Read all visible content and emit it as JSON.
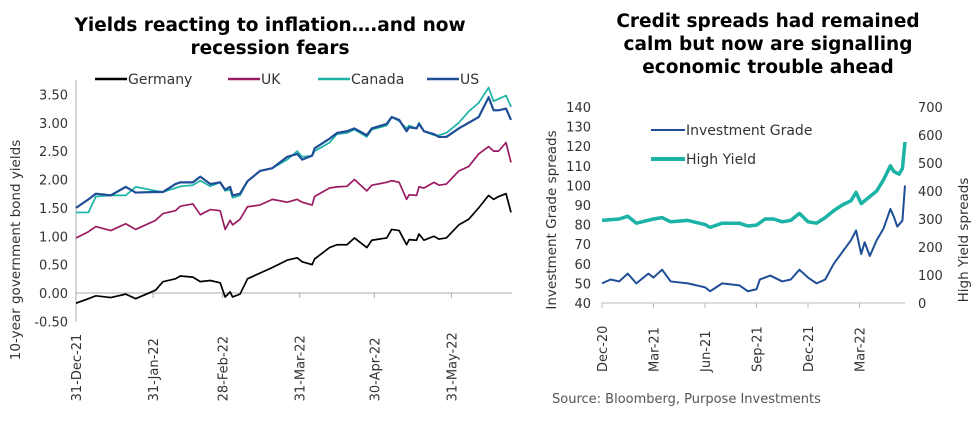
{
  "chart_data": [
    {
      "type": "line",
      "title": "Yields reacting to inflation….and now recession fears",
      "xlabel": "",
      "ylabel": "10-year government bond yields",
      "x_unit": "days since 31-Dec-21",
      "xlim": [
        0,
        175
      ],
      "ylim": [
        -0.5,
        3.75
      ],
      "yticks": [
        "-0.50",
        "0.00",
        "0.50",
        "1.00",
        "1.50",
        "2.00",
        "2.50",
        "3.00",
        "3.50"
      ],
      "ytick_values": [
        -0.5,
        0,
        0.5,
        1,
        1.5,
        2,
        2.5,
        3,
        3.5
      ],
      "xticks": [
        {
          "label": "31-Dec-21",
          "x": 0
        },
        {
          "label": "31-Jan-22",
          "x": 31
        },
        {
          "label": "28-Feb-22",
          "x": 59
        },
        {
          "label": "31-Mar-22",
          "x": 90
        },
        {
          "label": "30-Apr-22",
          "x": 120
        },
        {
          "label": "31-May-22",
          "x": 151
        }
      ],
      "legend_position": "top",
      "x": [
        0,
        5,
        8,
        14,
        20,
        24,
        32,
        35,
        40,
        42,
        47,
        50,
        54,
        58,
        60,
        62,
        63,
        66,
        69,
        74,
        79,
        85,
        89,
        91,
        95,
        96,
        102,
        105,
        109,
        112,
        117,
        119,
        125,
        127,
        130,
        133,
        134,
        137,
        138,
        140,
        144,
        146,
        149,
        154,
        158,
        162,
        166,
        168,
        170,
        173,
        175
      ],
      "series": [
        {
          "name": "Germany",
          "color": "#000000",
          "values": [
            -0.18,
            -0.1,
            -0.05,
            -0.08,
            -0.02,
            -0.1,
            0.05,
            0.2,
            0.25,
            0.3,
            0.28,
            0.2,
            0.22,
            0.18,
            -0.07,
            0.02,
            -0.07,
            -0.02,
            0.25,
            0.35,
            0.45,
            0.58,
            0.62,
            0.55,
            0.5,
            0.6,
            0.8,
            0.85,
            0.85,
            0.97,
            0.8,
            0.93,
            0.97,
            1.12,
            1.1,
            0.85,
            0.94,
            0.93,
            1.04,
            0.93,
            1.0,
            0.95,
            0.97,
            1.2,
            1.3,
            1.5,
            1.72,
            1.65,
            1.7,
            1.75,
            1.42
          ]
        },
        {
          "name": "UK",
          "color": "#9b1b62",
          "values": [
            0.97,
            1.08,
            1.17,
            1.1,
            1.22,
            1.12,
            1.28,
            1.4,
            1.45,
            1.53,
            1.57,
            1.38,
            1.47,
            1.45,
            1.12,
            1.28,
            1.2,
            1.3,
            1.52,
            1.55,
            1.65,
            1.6,
            1.65,
            1.6,
            1.55,
            1.7,
            1.85,
            1.87,
            1.88,
            2.0,
            1.8,
            1.9,
            1.95,
            1.98,
            1.95,
            1.65,
            1.73,
            1.72,
            1.87,
            1.85,
            1.95,
            1.9,
            1.92,
            2.15,
            2.23,
            2.45,
            2.58,
            2.5,
            2.5,
            2.65,
            2.3
          ]
        },
        {
          "name": "Canada",
          "color": "#1ab3a6",
          "values": [
            1.42,
            1.42,
            1.7,
            1.72,
            1.72,
            1.87,
            1.8,
            1.78,
            1.85,
            1.88,
            1.9,
            1.98,
            1.88,
            1.95,
            1.8,
            1.82,
            1.68,
            1.72,
            1.97,
            2.15,
            2.2,
            2.35,
            2.5,
            2.4,
            2.42,
            2.5,
            2.65,
            2.8,
            2.82,
            2.88,
            2.75,
            2.88,
            2.95,
            3.1,
            3.03,
            2.9,
            2.95,
            2.9,
            3.0,
            2.85,
            2.78,
            2.78,
            2.82,
            3.0,
            3.2,
            3.35,
            3.62,
            3.38,
            3.42,
            3.48,
            3.28
          ]
        },
        {
          "name": "US",
          "color": "#1f4e96",
          "values": [
            1.5,
            1.65,
            1.75,
            1.72,
            1.87,
            1.77,
            1.78,
            1.78,
            1.92,
            1.95,
            1.95,
            2.05,
            1.92,
            1.95,
            1.82,
            1.87,
            1.72,
            1.75,
            1.97,
            2.15,
            2.2,
            2.4,
            2.45,
            2.35,
            2.42,
            2.55,
            2.72,
            2.82,
            2.85,
            2.9,
            2.78,
            2.9,
            2.98,
            3.1,
            3.05,
            2.85,
            2.92,
            2.9,
            2.98,
            2.85,
            2.8,
            2.75,
            2.75,
            2.9,
            3.0,
            3.1,
            3.45,
            3.22,
            3.22,
            3.25,
            3.05
          ]
        }
      ]
    },
    {
      "type": "line",
      "title": "Credit spreads had remained calm but now are signalling economic trouble ahead",
      "xlabel": "",
      "ylabel": "Investment Grade spreads",
      "ylabel_right": "High Yield spreads",
      "x_unit": "months since Dec-20",
      "xlim": [
        0,
        17.7
      ],
      "ylim": [
        40,
        140
      ],
      "ylim_right": [
        0,
        700
      ],
      "yticks": [
        "40",
        "50",
        "60",
        "70",
        "80",
        "90",
        "100",
        "110",
        "120",
        "130",
        "140"
      ],
      "ytick_values": [
        40,
        50,
        60,
        70,
        80,
        90,
        100,
        110,
        120,
        130,
        140
      ],
      "yticks_right": [
        "0",
        "100",
        "200",
        "300",
        "400",
        "500",
        "600",
        "700"
      ],
      "ytick_right_values": [
        0,
        100,
        200,
        300,
        400,
        500,
        600,
        700
      ],
      "xticks": [
        {
          "label": "Dec-20",
          "x": 0
        },
        {
          "label": "Mar-21",
          "x": 3
        },
        {
          "label": "Jun-21",
          "x": 6
        },
        {
          "label": "Sep-21",
          "x": 9
        },
        {
          "label": "Dec-21",
          "x": 12
        },
        {
          "label": "Mar-22",
          "x": 15
        }
      ],
      "legend_position": "top-left",
      "series": [
        {
          "name": "Investment Grade",
          "axis": "left",
          "color": "#1f4e96",
          "x": [
            0,
            0.5,
            1,
            1.5,
            2,
            2.7,
            3,
            3.5,
            4,
            5,
            6,
            6.3,
            7,
            8,
            8.5,
            9,
            9.2,
            9.8,
            10.5,
            11,
            11.5,
            12,
            12.5,
            13,
            13.5,
            14,
            14.5,
            14.8,
            15.1,
            15.3,
            15.6,
            16,
            16.4,
            16.8,
            17,
            17.2,
            17.5,
            17.65
          ],
          "values": [
            50,
            52,
            51,
            55,
            50,
            55,
            53,
            57,
            51,
            50,
            48,
            46,
            50,
            49,
            46,
            47,
            52,
            54,
            51,
            52,
            57,
            53,
            50,
            52,
            60,
            66,
            72,
            77,
            65,
            71,
            64,
            72,
            78,
            88,
            84,
            79,
            82,
            100
          ]
        },
        {
          "name": "High Yield",
          "axis": "right",
          "color": "#1ab3a6",
          "x": [
            0,
            1,
            1.5,
            2,
            3,
            3.5,
            4,
            5,
            6,
            6.3,
            7,
            8,
            8.5,
            9,
            9.5,
            10,
            10.5,
            11,
            11.5,
            12,
            12.5,
            13,
            13.5,
            14,
            14.5,
            14.8,
            15.1,
            15.5,
            16,
            16.4,
            16.8,
            17,
            17.3,
            17.5,
            17.65
          ],
          "values": [
            295,
            300,
            310,
            285,
            300,
            305,
            290,
            295,
            280,
            270,
            285,
            285,
            275,
            278,
            300,
            300,
            290,
            295,
            320,
            290,
            285,
            305,
            330,
            350,
            365,
            395,
            355,
            375,
            400,
            440,
            490,
            470,
            460,
            480,
            575
          ]
        }
      ]
    }
  ],
  "source": "Source: Bloomberg, Purpose Investments"
}
